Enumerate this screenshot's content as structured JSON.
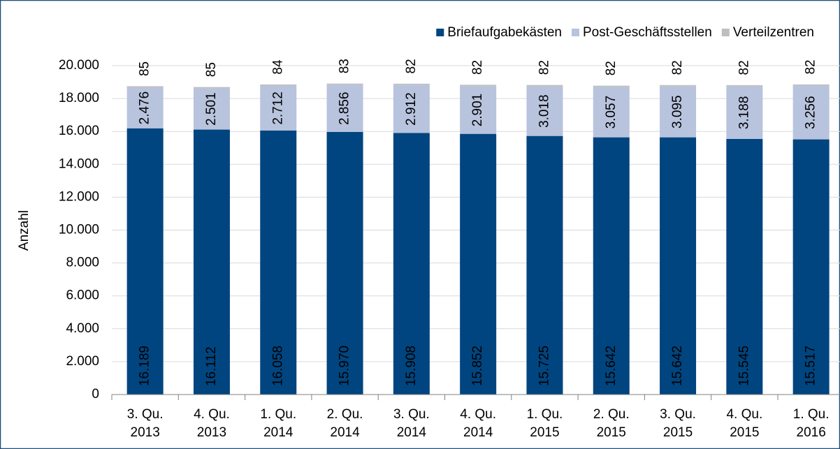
{
  "chart_data": {
    "type": "stacked_bar",
    "y_label": "Anzahl",
    "categories": [
      "3. Qu. 2013",
      "4. Qu. 2013",
      "1. Qu. 2014",
      "2. Qu. 2014",
      "3. Qu. 2014",
      "4. Qu. 2014",
      "1. Qu. 2015",
      "2. Qu. 2015",
      "3. Qu. 2015",
      "4. Qu. 2015",
      "1. Qu. 2016"
    ],
    "series": [
      {
        "name": "Briefaufgabekästen",
        "color": "#00457f",
        "values": [
          16189,
          16112,
          16058,
          15970,
          15908,
          15852,
          15725,
          15642,
          15642,
          15545,
          15517
        ],
        "value_labels": [
          "16.189",
          "16.112",
          "16.058",
          "15.970",
          "15.908",
          "15.852",
          "15.725",
          "15.642",
          "15.642",
          "15.545",
          "15.517"
        ]
      },
      {
        "name": "Post-Geschäftsstellen",
        "color": "#b8c3dd",
        "values": [
          2476,
          2501,
          2712,
          2856,
          2912,
          2901,
          3018,
          3057,
          3095,
          3188,
          3256
        ],
        "value_labels": [
          "2.476",
          "2.501",
          "2.712",
          "2.856",
          "2.912",
          "2.901",
          "3.018",
          "3.057",
          "3.095",
          "3.188",
          "3.256"
        ]
      },
      {
        "name": "Verteilzentren",
        "color": "#bfbfbf",
        "values": [
          85,
          85,
          84,
          83,
          82,
          82,
          82,
          82,
          82,
          82,
          82
        ]
      }
    ],
    "ylim": [
      0,
      20000
    ],
    "yticks": [
      0,
      {
        "value": 2000,
        "label": "2.000"
      },
      {
        "value": 4000,
        "label": "4.000"
      },
      {
        "value": 6000,
        "label": "6.000"
      },
      {
        "value": 8000,
        "label": "8.000"
      },
      {
        "value": 10000,
        "label": "10.000"
      },
      {
        "value": 12000,
        "label": "12.000"
      },
      {
        "value": 14000,
        "label": "14.000"
      },
      {
        "value": 16000,
        "label": "16.000"
      },
      {
        "value": 18000,
        "label": "18.000"
      },
      {
        "value": 20000,
        "label": "20.000"
      }
    ],
    "grid": true,
    "legend": "top-right"
  }
}
